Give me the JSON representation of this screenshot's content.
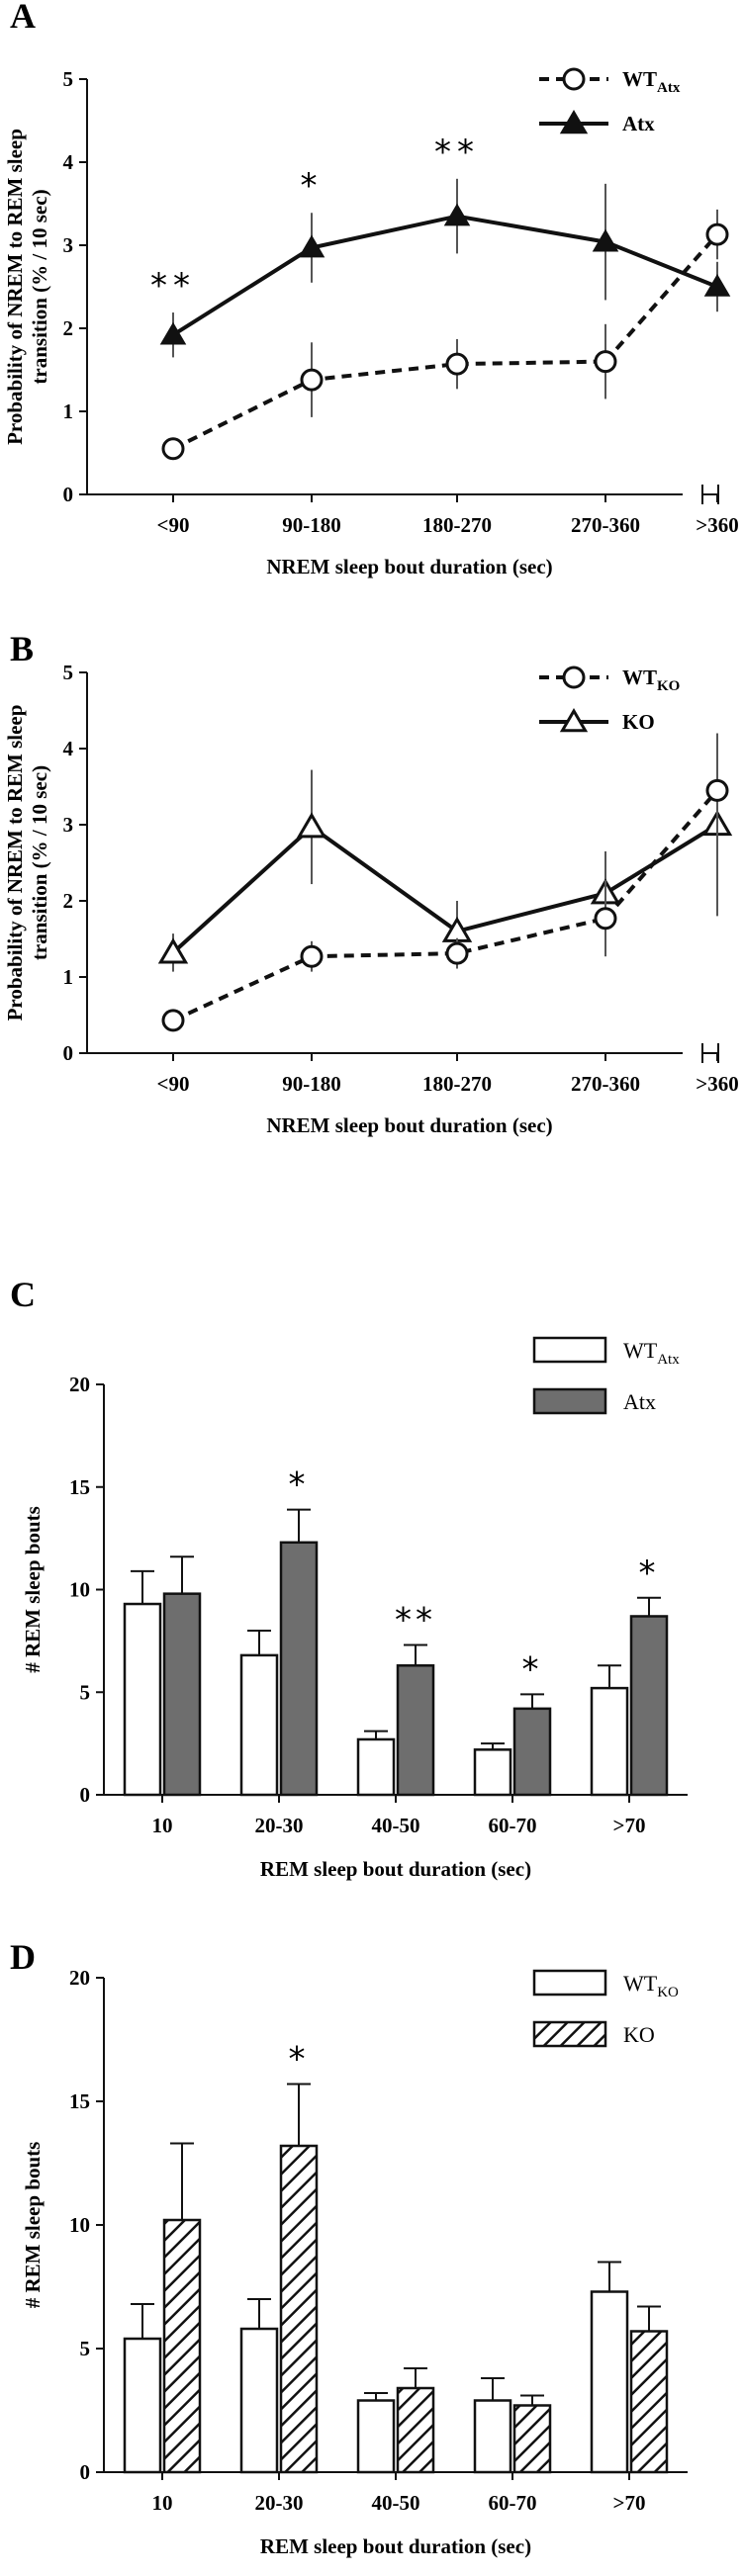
{
  "chart_data": [
    {
      "panel": "A",
      "type": "line",
      "categories": [
        "<90",
        "90-180",
        "180-270",
        "270-360",
        ">360"
      ],
      "xlabel": "NREM sleep bout duration (sec)",
      "ylabel_lines": [
        "Probability of NREM to REM sleep",
        "transition (% / 10 sec)"
      ],
      "ylim": [
        0,
        5
      ],
      "yticks": [
        "0",
        "1",
        "2",
        "3",
        "4",
        "5"
      ],
      "series": [
        {
          "name": "Atx",
          "marker": "filled-triangle",
          "line": "solid",
          "values": [
            1.92,
            2.97,
            3.35,
            3.04,
            2.5
          ],
          "errors": [
            0.27,
            0.42,
            0.45,
            0.7,
            0.3
          ]
        },
        {
          "name": "WT_Atx",
          "marker": "open-circle",
          "line": "dashed",
          "values": [
            0.55,
            1.38,
            1.57,
            1.6,
            3.13
          ],
          "errors": [
            0.12,
            0.45,
            0.3,
            0.45,
            0.3
          ]
        }
      ],
      "legend": [
        {
          "base": "WT",
          "sub": "Atx",
          "style": "dashed-circle"
        },
        {
          "base": "Atx",
          "sub": "",
          "style": "solid-filled-triangle"
        }
      ],
      "significance": [
        "**",
        "*",
        "**",
        "",
        ""
      ]
    },
    {
      "panel": "B",
      "type": "line",
      "categories": [
        "<90",
        "90-180",
        "180-270",
        "270-360",
        ">360"
      ],
      "xlabel": "NREM sleep bout duration (sec)",
      "ylabel_lines": [
        "Probability of NREM to REM sleep",
        "transition (% / 10 sec)"
      ],
      "ylim": [
        0,
        5
      ],
      "yticks": [
        "0",
        "1",
        "2",
        "3",
        "4",
        "5"
      ],
      "series": [
        {
          "name": "KO",
          "marker": "open-triangle",
          "line": "solid",
          "values": [
            1.32,
            2.97,
            1.6,
            2.1,
            3.0
          ],
          "errors": [
            0.25,
            0.75,
            0.4,
            0.55,
            1.2
          ]
        },
        {
          "name": "WT_KO",
          "marker": "open-circle",
          "line": "dashed",
          "values": [
            0.43,
            1.27,
            1.31,
            1.77,
            3.45
          ],
          "errors": [
            0.12,
            0.2,
            0.2,
            0.5,
            0.75
          ]
        }
      ],
      "legend": [
        {
          "base": "WT",
          "sub": "KO",
          "style": "dashed-circle"
        },
        {
          "base": "KO",
          "sub": "",
          "style": "solid-open-triangle"
        }
      ],
      "significance": [
        "",
        "",
        "",
        "",
        ""
      ]
    },
    {
      "panel": "C",
      "type": "bar",
      "categories": [
        "10",
        "20-30",
        "40-50",
        "60-70",
        ">70"
      ],
      "xlabel": "REM sleep bout duration (sec)",
      "ylabel": "# REM sleep bouts",
      "ylim": [
        0,
        20
      ],
      "yticks": [
        "0",
        "5",
        "10",
        "15",
        "20"
      ],
      "series": [
        {
          "name": "WT_Atx",
          "fill": "white",
          "values": [
            9.3,
            6.8,
            2.7,
            2.2,
            5.2
          ],
          "errors": [
            1.6,
            1.2,
            0.4,
            0.3,
            1.1
          ]
        },
        {
          "name": "Atx",
          "fill": "gray",
          "values": [
            9.8,
            12.3,
            6.3,
            4.2,
            8.7
          ],
          "errors": [
            1.8,
            1.6,
            1.0,
            0.7,
            0.9
          ]
        }
      ],
      "legend": [
        {
          "base": "WT",
          "sub": "Atx",
          "style": "white"
        },
        {
          "base": "Atx",
          "sub": "",
          "style": "gray"
        }
      ],
      "significance": [
        "",
        "*",
        "**",
        "*",
        "*"
      ]
    },
    {
      "panel": "D",
      "type": "bar",
      "categories": [
        "10",
        "20-30",
        "40-50",
        "60-70",
        ">70"
      ],
      "xlabel": "REM sleep bout duration (sec)",
      "ylabel": "# REM sleep bouts",
      "ylim": [
        0,
        20
      ],
      "yticks": [
        "0",
        "5",
        "10",
        "15",
        "20"
      ],
      "series": [
        {
          "name": "WT_KO",
          "fill": "white",
          "values": [
            5.4,
            5.8,
            2.9,
            2.9,
            7.3
          ],
          "errors": [
            1.4,
            1.2,
            0.3,
            0.9,
            1.2
          ]
        },
        {
          "name": "KO",
          "fill": "hatched",
          "values": [
            10.2,
            13.2,
            3.4,
            2.7,
            5.7
          ],
          "errors": [
            3.1,
            2.5,
            0.8,
            0.4,
            1.0
          ]
        }
      ],
      "legend": [
        {
          "base": "WT",
          "sub": "KO",
          "style": "white"
        },
        {
          "base": "KO",
          "sub": "",
          "style": "hatched"
        }
      ],
      "significance": [
        "",
        "*",
        "",
        "",
        ""
      ]
    }
  ]
}
